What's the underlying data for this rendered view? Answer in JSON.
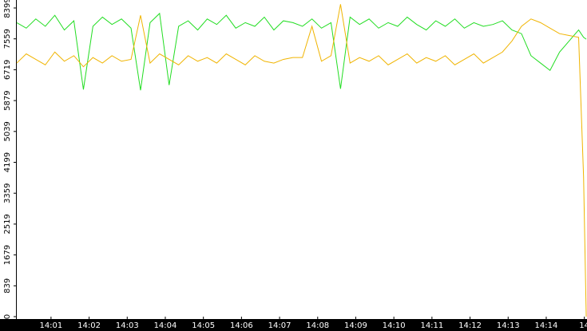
{
  "chart_data": {
    "type": "line",
    "xlim": [
      840.08,
      855.07
    ],
    "ylim": [
      0,
      8616
    ],
    "xticks": [
      {
        "value": 841,
        "label": "14:01"
      },
      {
        "value": 842,
        "label": "14:02"
      },
      {
        "value": 843,
        "label": "14:03"
      },
      {
        "value": 844,
        "label": "14:04"
      },
      {
        "value": 845,
        "label": "14:05"
      },
      {
        "value": 846,
        "label": "14:06"
      },
      {
        "value": 847,
        "label": "14:07"
      },
      {
        "value": 848,
        "label": "14:08"
      },
      {
        "value": 849,
        "label": "14:09"
      },
      {
        "value": 850,
        "label": "14:10"
      },
      {
        "value": 851,
        "label": "14:11"
      },
      {
        "value": 852,
        "label": "14:12"
      },
      {
        "value": 853,
        "label": "14:13"
      },
      {
        "value": 854,
        "label": "14:14"
      },
      {
        "value": 855,
        "label": "14"
      }
    ],
    "yticks": [
      0,
      839,
      1679,
      2519,
      3359,
      4199,
      5039,
      5879,
      6719,
      7559,
      8399
    ],
    "x": [
      840.1,
      840.35,
      840.6,
      840.85,
      841.1,
      841.35,
      841.6,
      841.85,
      842.1,
      842.35,
      842.6,
      842.85,
      843.1,
      843.35,
      843.6,
      843.85,
      844.1,
      844.35,
      844.6,
      844.85,
      845.1,
      845.35,
      845.6,
      845.85,
      846.1,
      846.35,
      846.6,
      846.85,
      847.1,
      847.35,
      847.6,
      847.85,
      848.1,
      848.35,
      848.6,
      848.85,
      849.1,
      849.35,
      849.6,
      849.85,
      850.1,
      850.35,
      850.6,
      850.85,
      851.1,
      851.35,
      851.6,
      851.85,
      852.1,
      852.35,
      852.6,
      852.85,
      853.1,
      853.35,
      853.6,
      853.85,
      854.1,
      854.35,
      854.6,
      854.85,
      854.98,
      855.05
    ],
    "series": [
      {
        "color": "#22dd22",
        "values": [
          8000,
          7850,
          8100,
          7900,
          8200,
          7800,
          8050,
          6180,
          7900,
          8150,
          7950,
          8100,
          7850,
          6160,
          8000,
          8250,
          6300,
          7900,
          8050,
          7800,
          8100,
          7950,
          8200,
          7850,
          8000,
          7900,
          8150,
          7800,
          8050,
          8000,
          7900,
          8100,
          7850,
          8000,
          6200,
          8150,
          7950,
          8100,
          7850,
          8000,
          7900,
          8150,
          7950,
          7800,
          8050,
          7900,
          8100,
          7850,
          8000,
          7900,
          7950,
          8050,
          7800,
          7700,
          7100,
          6900,
          6700,
          7200,
          7500,
          7800,
          7600,
          7550
        ]
      },
      {
        "color": "#f0b400",
        "values": [
          6900,
          7150,
          7000,
          6850,
          7200,
          6950,
          7100,
          6800,
          7050,
          6900,
          7100,
          6950,
          7000,
          8200,
          6900,
          7150,
          7000,
          6850,
          7100,
          6950,
          7050,
          6900,
          7150,
          7000,
          6850,
          7100,
          6950,
          6900,
          7000,
          7050,
          7050,
          7900,
          6950,
          7100,
          8500,
          6900,
          7050,
          6950,
          7100,
          6850,
          7000,
          7150,
          6900,
          7050,
          6950,
          7100,
          6850,
          7000,
          7150,
          6900,
          7050,
          7200,
          7500,
          7900,
          8100,
          8000,
          7850,
          7700,
          7650,
          7600,
          3800,
          0
        ]
      }
    ]
  }
}
